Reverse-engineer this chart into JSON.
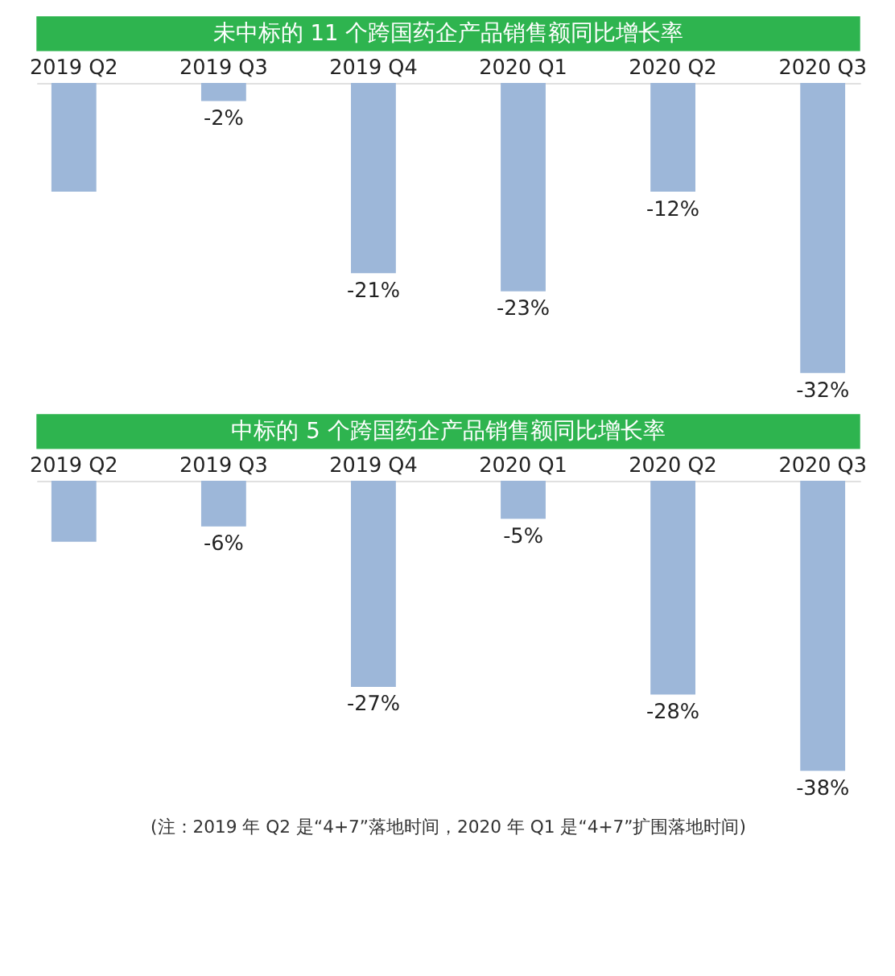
{
  "chart_data": [
    {
      "type": "bar",
      "title": "未中标的 11 个跨国药企产品销售额同比增长率",
      "categories": [
        "2019 Q2",
        "2019 Q3",
        "2019 Q4",
        "2020 Q1",
        "2020 Q2",
        "2020 Q3"
      ],
      "values": [
        -12,
        -2,
        -21,
        -23,
        -12,
        -32
      ],
      "value_labels": [
        null,
        "-2%",
        "-21%",
        "-23%",
        "-12%",
        "-32%"
      ],
      "color": "#9db7d9"
    },
    {
      "type": "bar",
      "title": "中标的 5 个跨国药企产品销售额同比增长率",
      "categories": [
        "2019 Q2",
        "2019 Q3",
        "2019 Q4",
        "2020 Q1",
        "2020 Q2",
        "2020 Q3"
      ],
      "values": [
        -8,
        -6,
        -27,
        -5,
        -28,
        -38
      ],
      "value_labels": [
        null,
        "-6%",
        "-27%",
        "-5%",
        "-28%",
        "-38%"
      ],
      "color": "#9db7d9",
      "annotations": [
        "(注：2019 年 Q2 是“4+7”落地时间，2020 年 Q1 是“4+7”扩围落地时间)"
      ]
    }
  ]
}
